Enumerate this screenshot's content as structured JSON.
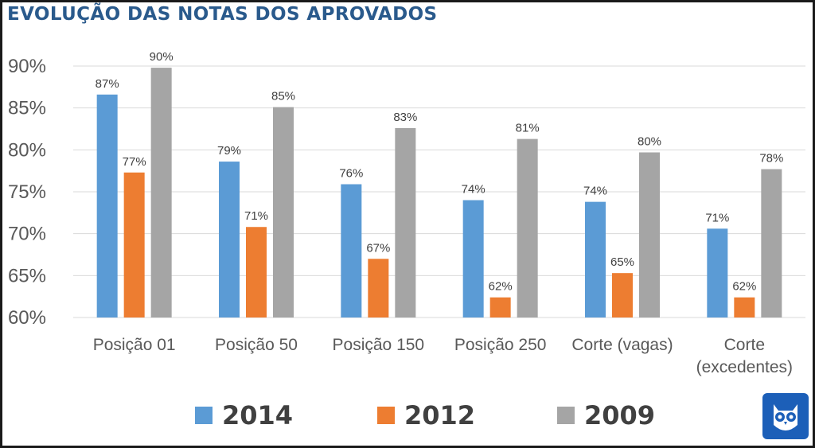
{
  "chart_data": {
    "type": "bar",
    "title": "EVOLUÇÃO DAS NOTAS DOS APROVADOS",
    "xlabel": "",
    "ylabel": "",
    "ylim": [
      60,
      90
    ],
    "yticks": [
      "60%",
      "65%",
      "70%",
      "75%",
      "80%",
      "85%",
      "90%"
    ],
    "ytick_values": [
      60,
      65,
      70,
      75,
      80,
      85,
      90
    ],
    "grid": true,
    "legend_position": "bottom",
    "categories": [
      [
        "Posição 01"
      ],
      [
        "Posição 50"
      ],
      [
        "Posição 150"
      ],
      [
        "Posição 250"
      ],
      [
        "Corte (vagas)"
      ],
      [
        "Corte",
        "(excedentes)"
      ]
    ],
    "series": [
      {
        "name": "2014",
        "color": "#5b9bd5",
        "values": [
          86.6,
          78.6,
          75.9,
          74.0,
          73.8,
          70.6
        ],
        "labels": [
          "87%",
          "79%",
          "76%",
          "74%",
          "74%",
          "71%"
        ]
      },
      {
        "name": "2012",
        "color": "#ed7d31",
        "values": [
          77.3,
          70.8,
          67.0,
          62.4,
          65.3,
          62.4
        ],
        "labels": [
          "77%",
          "71%",
          "67%",
          "62%",
          "65%",
          "62%"
        ]
      },
      {
        "name": "2009",
        "color": "#a5a5a5",
        "values": [
          89.8,
          85.1,
          82.6,
          81.3,
          79.7,
          77.7
        ],
        "labels": [
          "90%",
          "85%",
          "83%",
          "81%",
          "80%",
          "78%"
        ]
      }
    ]
  },
  "logo": {
    "name": "owl-logo-icon"
  }
}
